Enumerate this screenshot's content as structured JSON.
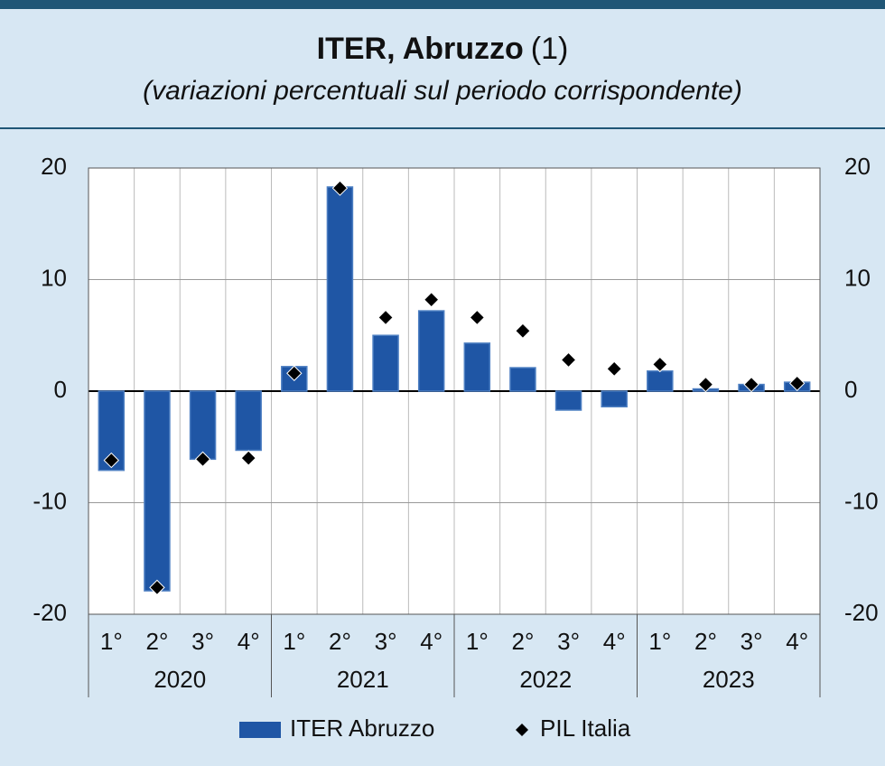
{
  "chart_data": {
    "type": "bar",
    "title": "ITER, Abruzzo",
    "title_note": "(1)",
    "subtitle": "(variazioni percentuali sul periodo corrispondente)",
    "categories": [
      "1°",
      "2°",
      "3°",
      "4°",
      "1°",
      "2°",
      "3°",
      "4°",
      "1°",
      "2°",
      "3°",
      "4°",
      "1°",
      "2°",
      "3°",
      "4°"
    ],
    "groups": [
      "2020",
      "2021",
      "2022",
      "2023"
    ],
    "series": [
      {
        "name": "ITER Abruzzo",
        "type": "bar",
        "color": "#1f56a5",
        "values": [
          -7.1,
          -17.9,
          -6.1,
          -5.3,
          2.2,
          18.3,
          5.0,
          7.2,
          4.3,
          2.1,
          -1.7,
          -1.4,
          1.8,
          0.2,
          0.6,
          0.8
        ]
      },
      {
        "name": "PIL Italia",
        "type": "marker",
        "color": "#000000",
        "values": [
          -6.2,
          -17.6,
          -6.1,
          -6.0,
          1.6,
          18.2,
          6.6,
          8.2,
          6.6,
          5.4,
          2.8,
          2.0,
          2.4,
          0.6,
          0.6,
          0.7
        ]
      }
    ],
    "ylim": [
      -20,
      20
    ],
    "yticks": [
      -20,
      -10,
      0,
      10,
      20
    ],
    "y2lim": [
      -20,
      20
    ],
    "y2ticks": [
      -20,
      -10,
      0,
      10,
      20
    ],
    "grid": true,
    "legend": "bottom"
  }
}
